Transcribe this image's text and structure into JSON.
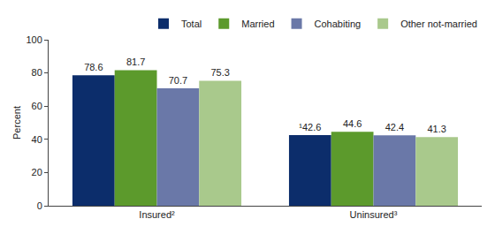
{
  "chart_data": {
    "type": "bar",
    "y_label": "Percent",
    "categories": [
      "Insured²",
      "Uninsured³"
    ],
    "series": [
      {
        "name": "Total",
        "color": "#0c2d6b",
        "values": [
          78.6,
          42.6
        ],
        "value_labels": [
          "78.6",
          "¹42.6"
        ]
      },
      {
        "name": "Married",
        "color": "#5c9a2c",
        "values": [
          81.7,
          44.6
        ]
      },
      {
        "name": "Cohabiting",
        "color": "#6a78a8",
        "values": [
          70.7,
          42.4
        ]
      },
      {
        "name": "Other not-married",
        "color": "#a9c98c",
        "values": [
          75.3,
          41.3
        ]
      }
    ],
    "ylim": [
      0,
      100
    ],
    "yticks": [
      0,
      20,
      40,
      60,
      80,
      100
    ],
    "grid": false,
    "legend": "top-right",
    "data_labels": true
  }
}
